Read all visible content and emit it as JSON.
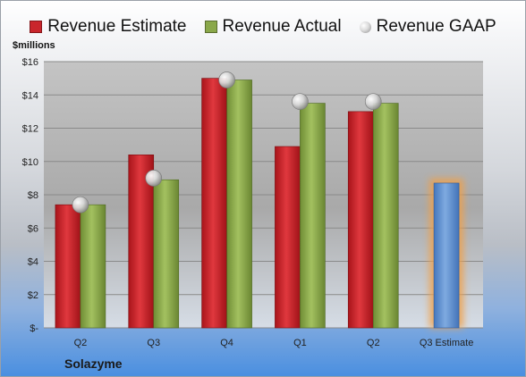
{
  "colors": {
    "estimate": "#c9262c",
    "actual": "#8aa84a",
    "gaap": "#c0c0c0",
    "highlight_bar": "#5b8fd0",
    "highlight_glow": "#f0a04a"
  },
  "footer": {
    "company": "Solazyme"
  },
  "chart_data": {
    "type": "bar",
    "title": "",
    "xlabel": "",
    "ylabel": "$millions",
    "ylim": [
      0,
      16
    ],
    "yticks": [
      {
        "value": 0,
        "label": "$-"
      },
      {
        "value": 2,
        "label": "$2"
      },
      {
        "value": 4,
        "label": "$4"
      },
      {
        "value": 6,
        "label": "$6"
      },
      {
        "value": 8,
        "label": "$8"
      },
      {
        "value": 10,
        "label": "$10"
      },
      {
        "value": 12,
        "label": "$12"
      },
      {
        "value": 14,
        "label": "$14"
      },
      {
        "value": 16,
        "label": "$16"
      }
    ],
    "grid": true,
    "legend_position": "top",
    "categories": [
      "Q2",
      "Q3",
      "Q4",
      "Q1",
      "Q2",
      "Q3 Estimate"
    ],
    "series": [
      {
        "name": "Revenue Estimate",
        "kind": "bar",
        "color": "#c9262c",
        "values": [
          7.4,
          10.4,
          15.0,
          10.9,
          13.0,
          null
        ]
      },
      {
        "name": "Revenue Actual",
        "kind": "bar",
        "color": "#8aa84a",
        "values": [
          7.4,
          8.9,
          14.9,
          13.5,
          13.5,
          8.7
        ]
      },
      {
        "name": "Revenue GAAP",
        "kind": "marker",
        "color": "#c0c0c0",
        "values": [
          7.4,
          9.0,
          14.9,
          13.6,
          13.6,
          null
        ]
      }
    ],
    "highlighted_category": "Q3 Estimate"
  }
}
